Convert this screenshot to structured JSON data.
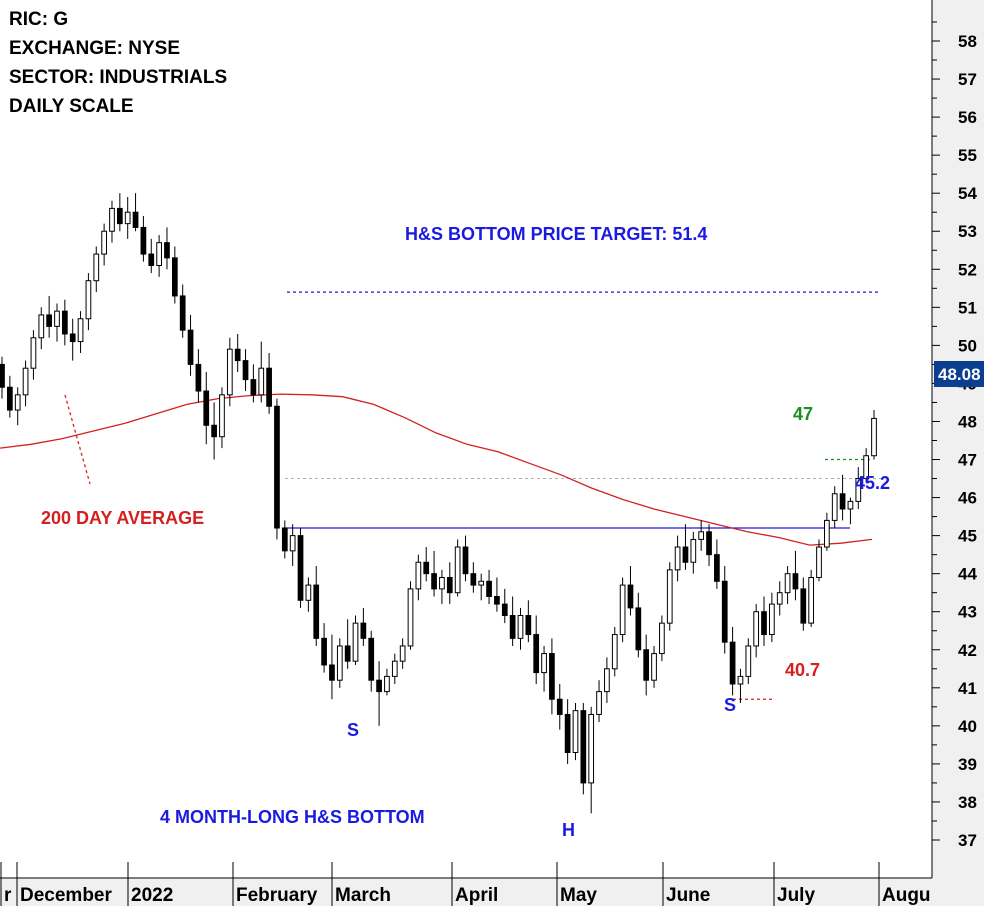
{
  "info": {
    "ric": "RIC: G",
    "exchange": "EXCHANGE: NYSE",
    "sector": "SECTOR: INDUSTRIALS",
    "scale": "DAILY SCALE"
  },
  "chart_data": {
    "type": "candlestick",
    "title": "",
    "xlabel": "",
    "ylabel": "",
    "ylim": [
      36.3,
      59
    ],
    "y_ticks": [
      37,
      38,
      39,
      40,
      41,
      42,
      43,
      44,
      45,
      46,
      47,
      48,
      49,
      50,
      51,
      52,
      53,
      54,
      55,
      56,
      57,
      58
    ],
    "x_ticks": [
      "r",
      "December",
      "2022",
      "February",
      "March",
      "April",
      "May",
      "June",
      "July",
      "Augu"
    ],
    "last_price": "48.08",
    "price_target_level": 51.4,
    "neckline_level": 45.2,
    "resistance_47_level": 47,
    "support_level": 40.7,
    "prior_support_level": 46.5,
    "grid": false,
    "legend": "none",
    "moving_average": {
      "name": "200 DAY AVERAGE",
      "color": "#d42020",
      "values": [
        47.3,
        47.4,
        47.55,
        47.75,
        47.95,
        48.2,
        48.45,
        48.6,
        48.68,
        48.72,
        48.7,
        48.65,
        48.45,
        48.1,
        47.7,
        47.4,
        47.2,
        46.9,
        46.6,
        46.25,
        45.95,
        45.7,
        45.5,
        45.3,
        45.1,
        44.95,
        44.75,
        44.8,
        44.9
      ]
    },
    "series": [
      {
        "values": [
          [
            49.5,
            49.7,
            48.6,
            48.9
          ],
          [
            48.9,
            49.2,
            48.1,
            48.3
          ],
          [
            48.3,
            48.9,
            47.9,
            48.7
          ],
          [
            48.7,
            49.6,
            48.4,
            49.4
          ],
          [
            49.4,
            50.4,
            49.1,
            50.2
          ],
          [
            50.2,
            51.0,
            49.9,
            50.8
          ],
          [
            50.8,
            51.3,
            50.2,
            50.5
          ],
          [
            50.5,
            51.1,
            50.1,
            50.9
          ],
          [
            50.9,
            51.2,
            50.0,
            50.3
          ],
          [
            50.3,
            50.7,
            49.6,
            50.1
          ],
          [
            50.1,
            50.9,
            49.8,
            50.7
          ],
          [
            50.7,
            51.9,
            50.4,
            51.7
          ],
          [
            51.7,
            52.6,
            51.4,
            52.4
          ],
          [
            52.4,
            53.2,
            52.1,
            53.0
          ],
          [
            53.0,
            53.8,
            52.7,
            53.6
          ],
          [
            53.6,
            54.0,
            53.0,
            53.2
          ],
          [
            53.2,
            53.9,
            52.8,
            53.5
          ],
          [
            53.5,
            54.0,
            53.0,
            53.1
          ],
          [
            53.1,
            53.4,
            52.2,
            52.4
          ],
          [
            52.4,
            52.8,
            51.9,
            52.1
          ],
          [
            52.1,
            52.9,
            51.8,
            52.7
          ],
          [
            52.7,
            53.1,
            52.0,
            52.3
          ],
          [
            52.3,
            52.6,
            51.1,
            51.3
          ],
          [
            51.3,
            51.6,
            50.2,
            50.4
          ],
          [
            50.4,
            50.8,
            49.2,
            49.5
          ],
          [
            49.5,
            49.9,
            48.5,
            48.8
          ],
          [
            48.8,
            49.3,
            47.4,
            47.9
          ],
          [
            47.9,
            48.5,
            47.0,
            47.6
          ],
          [
            47.6,
            48.9,
            47.3,
            48.7
          ],
          [
            48.7,
            50.2,
            48.4,
            49.9
          ],
          [
            49.9,
            50.3,
            49.3,
            49.6
          ],
          [
            49.6,
            49.9,
            48.8,
            49.1
          ],
          [
            49.1,
            49.5,
            48.5,
            48.7
          ],
          [
            48.7,
            50.1,
            48.5,
            49.4
          ],
          [
            49.4,
            49.8,
            48.2,
            48.4
          ],
          [
            48.4,
            48.6,
            44.9,
            45.2
          ],
          [
            45.2,
            45.4,
            44.4,
            44.6
          ],
          [
            44.6,
            45.3,
            44.2,
            45.0
          ],
          [
            45.0,
            45.2,
            43.1,
            43.3
          ],
          [
            43.3,
            43.9,
            43.0,
            43.7
          ],
          [
            43.7,
            44.2,
            42.1,
            42.3
          ],
          [
            42.3,
            42.7,
            41.4,
            41.6
          ],
          [
            41.6,
            42.4,
            40.7,
            41.2
          ],
          [
            41.2,
            42.3,
            41.0,
            42.1
          ],
          [
            42.1,
            42.8,
            41.5,
            41.7
          ],
          [
            41.7,
            42.9,
            41.6,
            42.7
          ],
          [
            42.7,
            43.1,
            42.1,
            42.3
          ],
          [
            42.3,
            42.5,
            40.9,
            41.2
          ],
          [
            41.2,
            41.7,
            40.0,
            40.9
          ],
          [
            40.9,
            41.5,
            40.8,
            41.3
          ],
          [
            41.3,
            41.9,
            41.1,
            41.7
          ],
          [
            41.7,
            42.3,
            41.5,
            42.1
          ],
          [
            42.1,
            43.8,
            42.0,
            43.6
          ],
          [
            43.6,
            44.5,
            43.3,
            44.3
          ],
          [
            44.3,
            44.7,
            43.8,
            44.0
          ],
          [
            44.0,
            44.6,
            43.4,
            43.6
          ],
          [
            43.6,
            44.1,
            43.2,
            43.9
          ],
          [
            43.9,
            44.3,
            43.2,
            43.5
          ],
          [
            43.5,
            44.9,
            43.4,
            44.7
          ],
          [
            44.7,
            45.0,
            43.8,
            44.0
          ],
          [
            44.0,
            44.3,
            43.5,
            43.7
          ],
          [
            43.7,
            44.0,
            43.3,
            43.8
          ],
          [
            43.8,
            44.1,
            43.2,
            43.4
          ],
          [
            43.4,
            43.9,
            43.0,
            43.2
          ],
          [
            43.2,
            43.6,
            42.7,
            42.9
          ],
          [
            42.9,
            43.4,
            42.1,
            42.3
          ],
          [
            42.3,
            43.1,
            42.0,
            42.9
          ],
          [
            42.9,
            43.3,
            42.2,
            42.4
          ],
          [
            42.4,
            42.9,
            41.1,
            41.4
          ],
          [
            41.4,
            42.1,
            40.9,
            41.9
          ],
          [
            41.9,
            42.3,
            40.3,
            40.7
          ],
          [
            40.7,
            41.1,
            39.9,
            40.3
          ],
          [
            40.3,
            40.7,
            39.0,
            39.3
          ],
          [
            39.3,
            40.6,
            39.1,
            40.4
          ],
          [
            40.4,
            40.6,
            38.2,
            38.5
          ],
          [
            38.5,
            40.5,
            37.7,
            40.3
          ],
          [
            40.3,
            41.2,
            40.1,
            40.9
          ],
          [
            40.9,
            41.8,
            40.6,
            41.5
          ],
          [
            41.5,
            42.6,
            41.3,
            42.4
          ],
          [
            42.4,
            43.9,
            42.2,
            43.7
          ],
          [
            43.7,
            44.2,
            42.9,
            43.1
          ],
          [
            43.1,
            43.5,
            41.8,
            42.0
          ],
          [
            42.0,
            42.4,
            40.8,
            41.2
          ],
          [
            41.2,
            42.1,
            41.0,
            41.9
          ],
          [
            41.9,
            42.9,
            41.7,
            42.7
          ],
          [
            42.7,
            44.3,
            42.5,
            44.1
          ],
          [
            44.1,
            45.0,
            43.8,
            44.7
          ],
          [
            44.7,
            45.3,
            44.1,
            44.3
          ],
          [
            44.3,
            45.1,
            44.0,
            44.9
          ],
          [
            44.9,
            45.4,
            44.6,
            45.1
          ],
          [
            45.1,
            45.3,
            44.2,
            44.5
          ],
          [
            44.5,
            44.9,
            43.6,
            43.8
          ],
          [
            43.8,
            44.2,
            41.9,
            42.2
          ],
          [
            42.2,
            42.6,
            40.8,
            41.1
          ],
          [
            41.1,
            41.5,
            40.6,
            41.3
          ],
          [
            41.3,
            42.3,
            41.1,
            42.1
          ],
          [
            42.1,
            43.2,
            41.8,
            43.0
          ],
          [
            43.0,
            43.4,
            42.1,
            42.4
          ],
          [
            42.4,
            43.5,
            42.2,
            43.2
          ],
          [
            43.2,
            43.8,
            42.9,
            43.5
          ],
          [
            43.5,
            44.2,
            43.2,
            44.0
          ],
          [
            44.0,
            44.6,
            43.3,
            43.6
          ],
          [
            43.6,
            43.9,
            42.5,
            42.7
          ],
          [
            42.7,
            44.1,
            42.6,
            43.9
          ],
          [
            43.9,
            44.9,
            43.8,
            44.7
          ],
          [
            44.7,
            45.6,
            44.6,
            45.4
          ],
          [
            45.4,
            46.3,
            45.2,
            46.1
          ],
          [
            46.1,
            46.6,
            45.4,
            45.7
          ],
          [
            45.7,
            46.0,
            45.3,
            45.9
          ],
          [
            45.9,
            46.8,
            45.7,
            46.5
          ],
          [
            46.5,
            47.3,
            46.4,
            47.1
          ],
          [
            47.1,
            48.3,
            47.0,
            48.08
          ]
        ]
      }
    ],
    "annotations": {
      "target_label": "H&S BOTTOM PRICE TARGET: 51.4",
      "ma_label": "200 DAY AVERAGE",
      "pattern_label": "4 MONTH-LONG H&S BOTTOM",
      "shoulder_left": "S",
      "head": "H",
      "shoulder_right": "S",
      "level_47": "47",
      "level_45_2": "45.2",
      "level_40_7": "40.7"
    }
  },
  "colors": {
    "blue": "#1a1ae0",
    "red": "#d42020",
    "green": "#1a8f1a",
    "price_box": "#0b3d91",
    "axis_bg": "#f0f0f0"
  }
}
